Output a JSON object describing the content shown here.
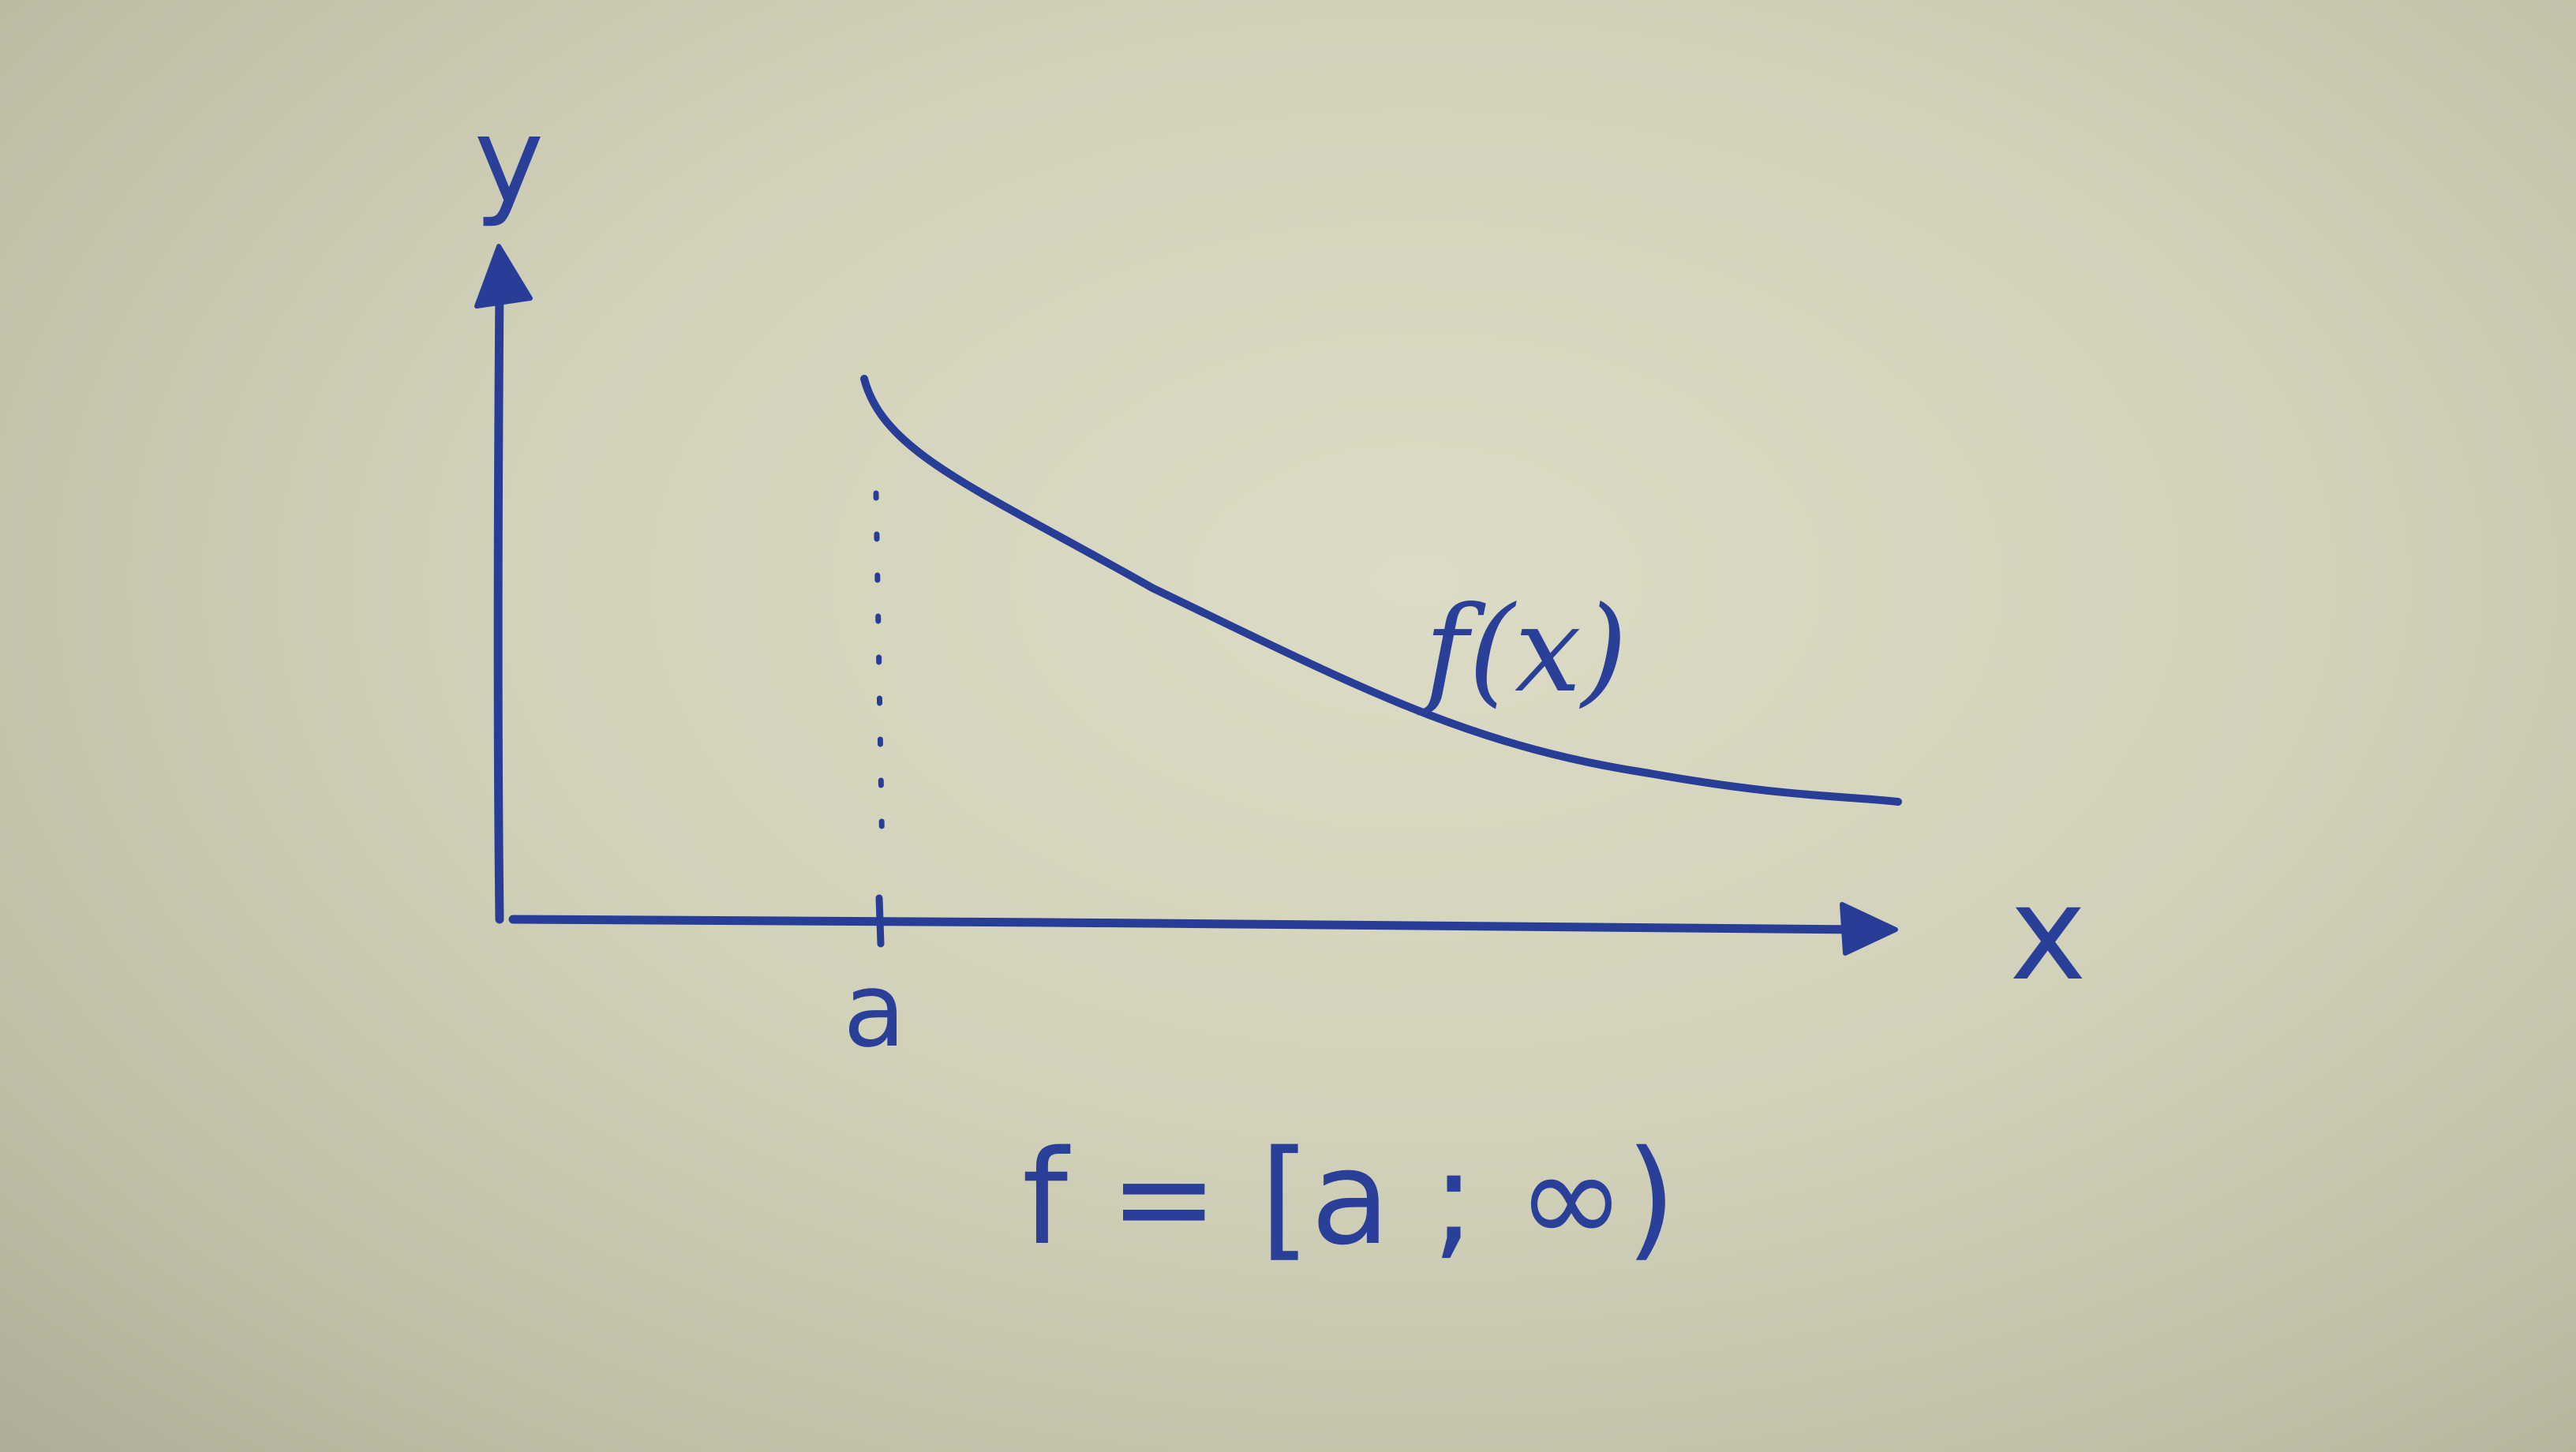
{
  "diagram": {
    "axis_labels": {
      "y": "y",
      "x": "x"
    },
    "tick_label": "a",
    "curve_label": "f(x)",
    "formula": "f = [a ; ∞)"
  },
  "colors": {
    "ink": "#283e96",
    "paper": "#d2d2bb"
  }
}
